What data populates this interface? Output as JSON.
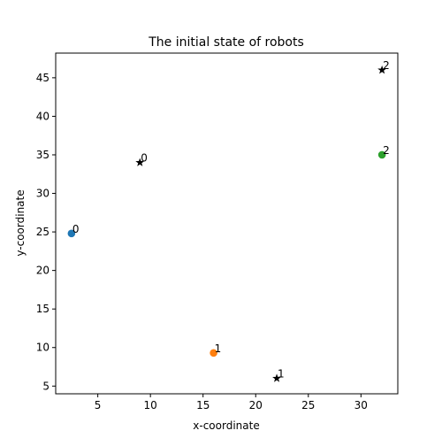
{
  "chart_data": {
    "type": "scatter",
    "title": "The initial state of robots",
    "xlabel": "x-coordinate",
    "ylabel": "y-coordinate",
    "xlim": [
      1.0,
      33.5
    ],
    "ylim": [
      4.0,
      48.2
    ],
    "xticks": [
      5,
      10,
      15,
      20,
      25,
      30
    ],
    "yticks": [
      5,
      10,
      15,
      20,
      25,
      30,
      35,
      40,
      45
    ],
    "grid": false,
    "legend": "none",
    "series": [
      {
        "marker": "circle",
        "points": [
          {
            "x": 2.5,
            "y": 24.8,
            "label": "0",
            "color": "#1f77b4"
          },
          {
            "x": 16.0,
            "y": 9.3,
            "label": "1",
            "color": "#ff7f0e"
          },
          {
            "x": 32.0,
            "y": 35.0,
            "label": "2",
            "color": "#2ca02c"
          }
        ]
      },
      {
        "marker": "star",
        "points": [
          {
            "x": 9.0,
            "y": 34.0,
            "label": "0",
            "color": "#000000"
          },
          {
            "x": 22.0,
            "y": 6.0,
            "label": "1",
            "color": "#000000"
          },
          {
            "x": 32.0,
            "y": 46.0,
            "label": "2",
            "color": "#000000"
          }
        ]
      }
    ]
  }
}
